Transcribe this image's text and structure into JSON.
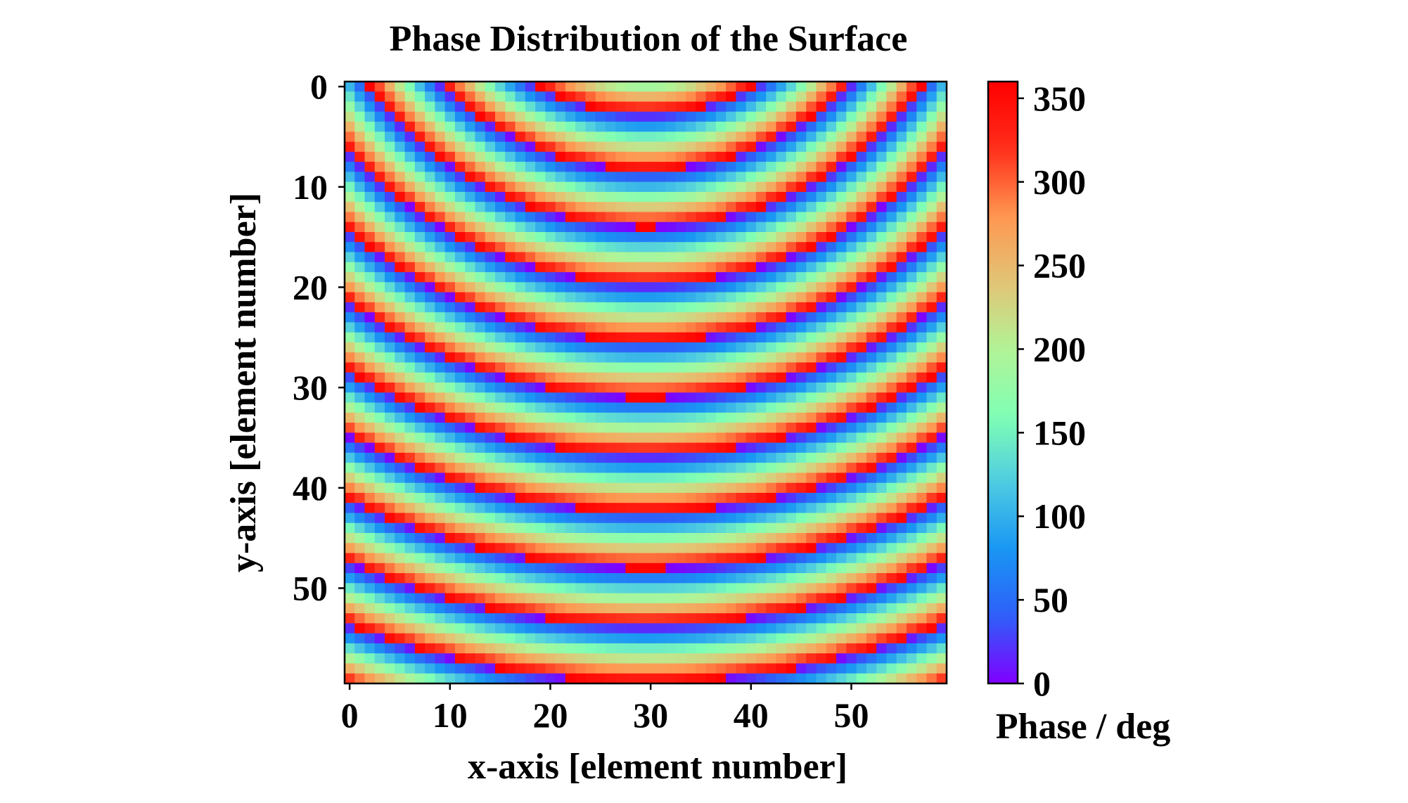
{
  "chart_data": {
    "type": "heatmap",
    "title": "Phase Distribution of the Surface",
    "xlabel": "x-axis [element number]",
    "ylabel": "y-axis [element number]",
    "colorbar_label": "Phase / deg",
    "grid_size": [
      60,
      60
    ],
    "x_ticks": [
      0,
      10,
      20,
      30,
      40,
      50
    ],
    "y_ticks": [
      0,
      10,
      20,
      30,
      40,
      50
    ],
    "colorbar_ticks": [
      0,
      50,
      100,
      150,
      200,
      250,
      300,
      350
    ],
    "value_range": [
      0,
      360
    ],
    "colormap": "rainbow",
    "colormap_stops": [
      "#8000ff",
      "#2e5ff9",
      "#1996f3",
      "#4ecbe2",
      "#80ffb4",
      "#b2f396",
      "#e2c475",
      "#ff9650",
      "#ff2d1a",
      "#ff0000"
    ],
    "phase_profile": {
      "description": "phase = 360 * frac(k * sqrt((x - x0)^2 + (y - y0)^2) / 360), wrapped to [0, 360)",
      "center_x": 29.5,
      "center_y": -20,
      "k_deg_per_element": 63.5
    }
  }
}
